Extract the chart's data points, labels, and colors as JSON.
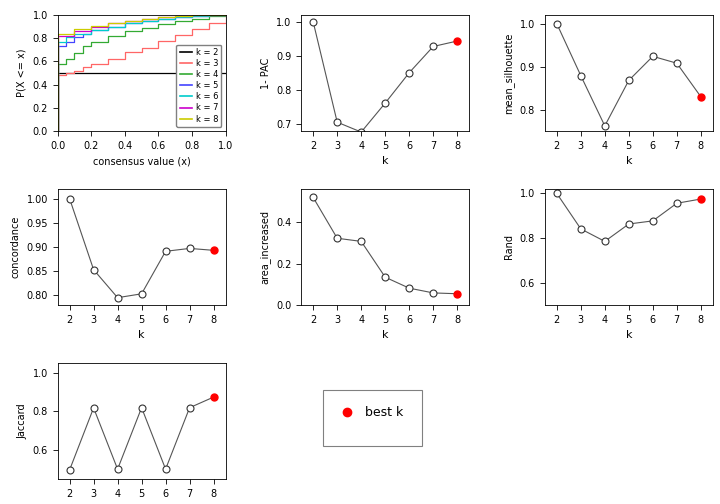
{
  "ecdf_lines": [
    {
      "k": 2,
      "color": "#000000",
      "x": [
        0.0,
        1.0
      ],
      "y": [
        0.5,
        0.5
      ]
    },
    {
      "k": 3,
      "color": "#FF6666",
      "x": [
        0.0,
        0.0,
        0.05,
        0.05,
        0.1,
        0.1,
        0.15,
        0.15,
        0.2,
        0.2,
        0.3,
        0.3,
        0.4,
        0.4,
        0.5,
        0.5,
        0.6,
        0.6,
        0.7,
        0.7,
        0.8,
        0.8,
        0.9,
        0.9,
        1.0,
        1.0
      ],
      "y": [
        0.0,
        0.48,
        0.48,
        0.5,
        0.5,
        0.52,
        0.52,
        0.55,
        0.55,
        0.58,
        0.58,
        0.62,
        0.62,
        0.68,
        0.68,
        0.72,
        0.72,
        0.78,
        0.78,
        0.83,
        0.83,
        0.88,
        0.88,
        0.93,
        0.93,
        1.0
      ]
    },
    {
      "k": 4,
      "color": "#33AA33",
      "x": [
        0.0,
        0.0,
        0.05,
        0.05,
        0.1,
        0.1,
        0.15,
        0.15,
        0.2,
        0.2,
        0.3,
        0.3,
        0.4,
        0.4,
        0.5,
        0.5,
        0.6,
        0.6,
        0.7,
        0.7,
        0.8,
        0.8,
        0.9,
        0.9,
        1.0,
        1.0
      ],
      "y": [
        0.0,
        0.58,
        0.58,
        0.62,
        0.62,
        0.67,
        0.67,
        0.73,
        0.73,
        0.77,
        0.77,
        0.82,
        0.82,
        0.86,
        0.86,
        0.89,
        0.89,
        0.92,
        0.92,
        0.95,
        0.95,
        0.97,
        0.97,
        0.99,
        0.99,
        1.0
      ]
    },
    {
      "k": 5,
      "color": "#4444FF",
      "x": [
        0.0,
        0.0,
        0.05,
        0.05,
        0.1,
        0.1,
        0.15,
        0.15,
        0.2,
        0.2,
        0.3,
        0.3,
        0.4,
        0.4,
        0.5,
        0.5,
        0.6,
        0.6,
        0.7,
        0.7,
        0.8,
        0.8,
        0.9,
        0.9,
        1.0,
        1.0
      ],
      "y": [
        0.0,
        0.73,
        0.73,
        0.77,
        0.77,
        0.81,
        0.81,
        0.84,
        0.84,
        0.87,
        0.87,
        0.9,
        0.9,
        0.93,
        0.93,
        0.95,
        0.95,
        0.97,
        0.97,
        0.98,
        0.98,
        0.99,
        0.99,
        1.0,
        1.0,
        1.0
      ]
    },
    {
      "k": 6,
      "color": "#00CCCC",
      "x": [
        0.0,
        0.0,
        0.05,
        0.05,
        0.1,
        0.1,
        0.2,
        0.2,
        0.3,
        0.3,
        0.4,
        0.4,
        0.5,
        0.5,
        0.6,
        0.6,
        0.7,
        0.7,
        0.8,
        0.8,
        0.9,
        0.9,
        1.0,
        1.0
      ],
      "y": [
        0.0,
        0.77,
        0.77,
        0.81,
        0.81,
        0.84,
        0.84,
        0.87,
        0.87,
        0.9,
        0.9,
        0.93,
        0.93,
        0.95,
        0.95,
        0.97,
        0.97,
        0.98,
        0.98,
        0.99,
        0.99,
        1.0,
        1.0,
        1.0
      ]
    },
    {
      "k": 7,
      "color": "#CC00CC",
      "x": [
        0.0,
        0.0,
        0.1,
        0.1,
        0.2,
        0.2,
        0.3,
        0.3,
        0.4,
        0.4,
        0.5,
        0.5,
        0.6,
        0.6,
        0.7,
        0.7,
        0.8,
        0.8,
        0.9,
        0.9,
        1.0,
        1.0
      ],
      "y": [
        0.0,
        0.82,
        0.82,
        0.86,
        0.86,
        0.9,
        0.9,
        0.93,
        0.93,
        0.95,
        0.95,
        0.97,
        0.97,
        0.98,
        0.98,
        0.99,
        0.99,
        1.0,
        1.0,
        1.0,
        1.0,
        1.0
      ]
    },
    {
      "k": 8,
      "color": "#CCCC00",
      "x": [
        0.0,
        0.0,
        0.1,
        0.1,
        0.2,
        0.2,
        0.3,
        0.3,
        0.4,
        0.4,
        0.5,
        0.5,
        0.6,
        0.6,
        0.7,
        0.7,
        0.8,
        0.8,
        0.9,
        0.9,
        1.0,
        1.0
      ],
      "y": [
        0.0,
        0.84,
        0.84,
        0.88,
        0.88,
        0.91,
        0.91,
        0.93,
        0.93,
        0.95,
        0.95,
        0.97,
        0.97,
        0.98,
        0.98,
        0.99,
        0.99,
        1.0,
        1.0,
        1.0,
        1.0,
        1.0
      ]
    }
  ],
  "k_values": [
    2,
    3,
    4,
    5,
    6,
    7,
    8
  ],
  "1pac": [
    1.0,
    0.706,
    0.677,
    0.762,
    0.851,
    0.928,
    0.944
  ],
  "mean_silhouette": [
    1.0,
    0.879,
    0.762,
    0.868,
    0.924,
    0.908,
    0.83
  ],
  "concordance": [
    1.0,
    0.853,
    0.795,
    0.803,
    0.891,
    0.897,
    0.893
  ],
  "area_increased": [
    0.519,
    0.322,
    0.307,
    0.134,
    0.081,
    0.058,
    0.054
  ],
  "rand": [
    1.0,
    0.841,
    0.785,
    0.863,
    0.877,
    0.956,
    0.975
  ],
  "jaccard": [
    0.496,
    0.817,
    0.5,
    0.818,
    0.5,
    0.818,
    0.873
  ],
  "best_k": 8,
  "line_color": "#555555",
  "open_marker_color": "#ffffff",
  "open_marker_edge": "#333333",
  "best_k_color": "#FF0000",
  "legend_colors": [
    "#000000",
    "#FF6666",
    "#33AA33",
    "#4444FF",
    "#00CCCC",
    "#CC00CC",
    "#CCCC00"
  ],
  "legend_labels": [
    "k = 2",
    "k = 3",
    "k = 4",
    "k = 5",
    "k = 6",
    "k = 7",
    "k = 8"
  ]
}
